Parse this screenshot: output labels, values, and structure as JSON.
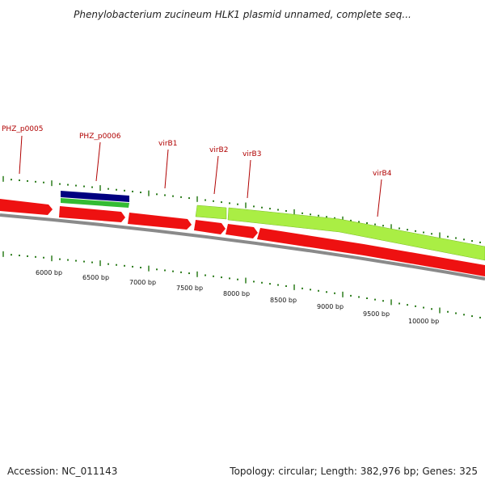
{
  "title": "Phenylobacterium zucineum HLK1 plasmid unnamed, complete seq...",
  "footer": {
    "accession": "Accession: NC_011143",
    "summary": "Topology: circular; Length: 382,976 bp; Genes: 325"
  },
  "colors": {
    "backbone": "#8a8a8a",
    "forward_gene": "#ee1111",
    "highlight_gene": "#aaee44",
    "blue_feature": "#000080",
    "green_feature": "#33bb33",
    "tick": "#2e7d1e",
    "label": "#b00000"
  },
  "gene_labels": [
    "PHZ_p0005",
    "PHZ_p0006",
    "virB1",
    "virB2",
    "virB3",
    "virB4"
  ],
  "bp_labels": [
    "6000 bp",
    "6500 bp",
    "7000 bp",
    "7500 bp",
    "8000 bp",
    "8500 bp",
    "9000 bp",
    "9500 bp",
    "10000 bp"
  ]
}
